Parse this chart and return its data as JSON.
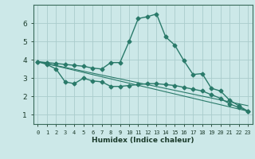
{
  "xlabel": "Humidex (Indice chaleur)",
  "bg_color": "#cce8e8",
  "grid_color": "#aacccc",
  "line_color": "#2a7a6a",
  "xlim": [
    -0.5,
    23.5
  ],
  "ylim": [
    0.5,
    7.0
  ],
  "xticks": [
    0,
    1,
    2,
    3,
    4,
    5,
    6,
    7,
    8,
    9,
    10,
    11,
    12,
    13,
    14,
    15,
    16,
    17,
    18,
    19,
    20,
    21,
    22,
    23
  ],
  "yticks": [
    1,
    2,
    3,
    4,
    5,
    6
  ],
  "series": [
    {
      "x": [
        0,
        1,
        2,
        3,
        4,
        5,
        6,
        7,
        8,
        9,
        10,
        11,
        12,
        13,
        14,
        15,
        16,
        17,
        18,
        19,
        20,
        21,
        22,
        23
      ],
      "y": [
        3.9,
        3.85,
        3.8,
        3.75,
        3.7,
        3.65,
        3.55,
        3.5,
        3.85,
        3.85,
        5.0,
        6.25,
        6.35,
        6.5,
        5.25,
        4.8,
        3.95,
        3.2,
        3.25,
        2.45,
        2.3,
        1.8,
        1.5,
        1.2
      ],
      "marker": "D",
      "markersize": 2.5,
      "lw": 1.0
    },
    {
      "x": [
        0,
        23
      ],
      "y": [
        3.9,
        1.2
      ],
      "marker": null,
      "markersize": 0,
      "lw": 0.8
    },
    {
      "x": [
        0,
        23
      ],
      "y": [
        3.9,
        1.5
      ],
      "marker": null,
      "markersize": 0,
      "lw": 0.8
    },
    {
      "x": [
        0,
        1,
        2,
        3,
        4,
        5,
        6,
        7,
        8,
        9,
        10,
        11,
        12,
        13,
        14,
        15,
        16,
        17,
        18,
        19,
        20,
        21,
        22,
        23
      ],
      "y": [
        3.9,
        3.75,
        3.5,
        2.8,
        2.7,
        3.0,
        2.85,
        2.8,
        2.55,
        2.55,
        2.6,
        2.65,
        2.7,
        2.7,
        2.65,
        2.6,
        2.5,
        2.4,
        2.3,
        2.1,
        1.9,
        1.6,
        1.4,
        1.2
      ],
      "marker": "D",
      "markersize": 2.5,
      "lw": 1.0
    }
  ]
}
